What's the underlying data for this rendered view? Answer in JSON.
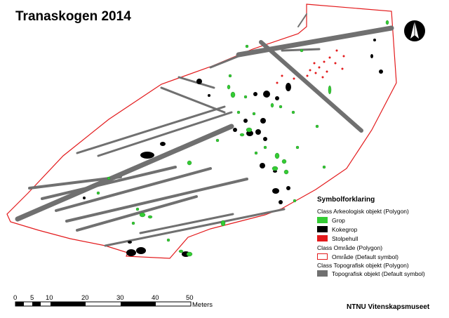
{
  "map": {
    "title": "Tranaskogen 2014",
    "north_arrow": "north-arrow-icon",
    "colors": {
      "grop": "#33cc33",
      "kokegrop": "#000000",
      "stolpehull": "#e31a1c",
      "omrade_outline": "#e31a1c",
      "topografisk": "#707070"
    }
  },
  "legend": {
    "heading": "Symbolforklaring",
    "class_arkeologisk": "Class Arkeologisk objekt (Polygon)",
    "grop": "Grop",
    "kokegrop": "Kokegrop",
    "stolpehull": "Stolpehull",
    "class_omrade": "Class Område (Polygon)",
    "omrade": "Område (Default symbol)",
    "class_topografisk": "Class Topografisk objekt (Polygon)",
    "topografisk": "Topografisk objekt (Default symbol)"
  },
  "scalebar": {
    "labels": [
      "0",
      "5",
      "10",
      "20",
      "30",
      "40",
      "50"
    ],
    "unit": "Meters"
  },
  "credit": "NTNU Vitenskapsmuseet"
}
